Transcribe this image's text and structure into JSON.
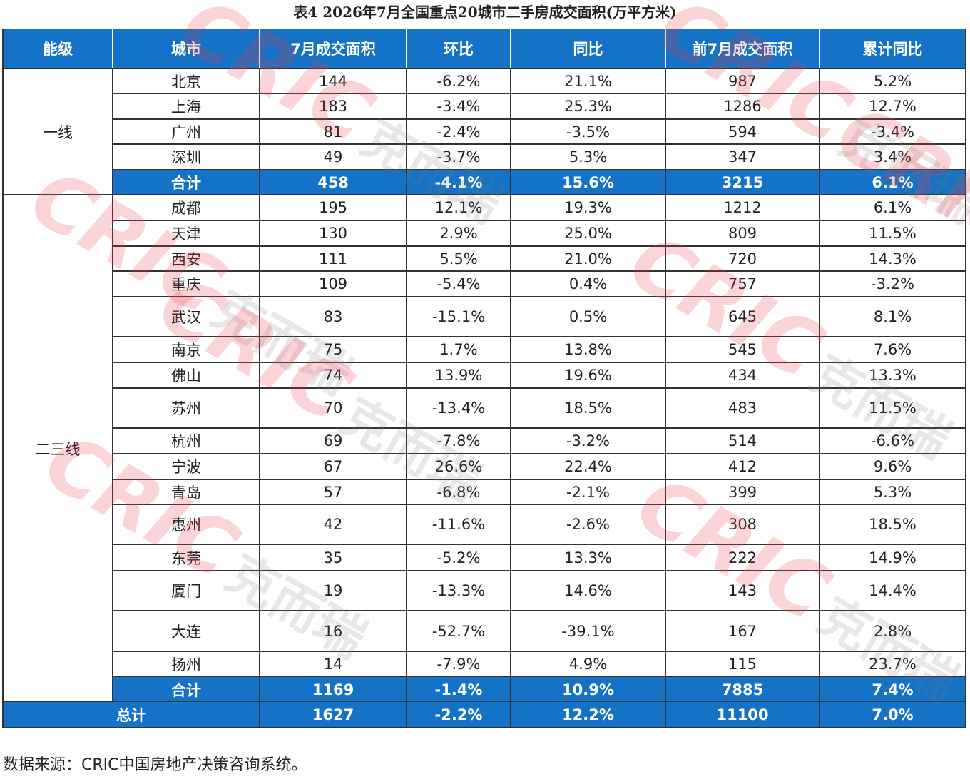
{
  "title": "表4 2026年7月全国重点20城市二手房成交面积(万平方米)",
  "table": {
    "header": [
      "能级",
      "城市",
      "7月成交面积",
      "环比",
      "同比",
      "前7月成交面积",
      "累计同比"
    ],
    "groups": [
      {
        "level": "一线",
        "rows": [
          [
            "北京",
            "144",
            "-6.2%",
            "21.1%",
            "987",
            "5.2%"
          ],
          [
            "上海",
            "183",
            "-3.4%",
            "25.3%",
            "1286",
            "12.7%"
          ],
          [
            "广州",
            "81",
            "-2.4%",
            "-3.5%",
            "594",
            "-3.4%"
          ],
          [
            "深圳",
            "49",
            "-3.7%",
            "5.3%",
            "347",
            "3.4%"
          ]
        ],
        "subtotal": [
          "合计",
          "458",
          "-4.1%",
          "15.6%",
          "3215",
          "6.1%"
        ]
      },
      {
        "level": "二三线",
        "rows": [
          [
            "成都",
            "195",
            "12.1%",
            "19.3%",
            "1212",
            "6.1%"
          ],
          [
            "天津",
            "130",
            "2.9%",
            "25.0%",
            "809",
            "11.5%"
          ],
          [
            "西安",
            "111",
            "5.5%",
            "21.0%",
            "720",
            "14.3%"
          ],
          [
            "重庆",
            "109",
            "-5.4%",
            "0.4%",
            "757",
            "-3.2%"
          ],
          [
            "武汉",
            "83",
            "-15.1%",
            "0.5%",
            "645",
            "8.1%"
          ],
          [
            "南京",
            "75",
            "1.7%",
            "13.8%",
            "545",
            "7.6%"
          ],
          [
            "佛山",
            "74",
            "13.9%",
            "19.6%",
            "434",
            "13.3%"
          ],
          [
            "苏州",
            "70",
            "-13.4%",
            "18.5%",
            "483",
            "11.5%"
          ],
          [
            "杭州",
            "69",
            "-7.8%",
            "-3.2%",
            "514",
            "-6.6%"
          ],
          [
            "宁波",
            "67",
            "26.6%",
            "22.4%",
            "412",
            "9.6%"
          ],
          [
            "青岛",
            "57",
            "-6.8%",
            "-2.1%",
            "399",
            "5.3%"
          ],
          [
            "惠州",
            "42",
            "-11.6%",
            "-2.6%",
            "308",
            "18.5%"
          ],
          [
            "东莞",
            "35",
            "-5.2%",
            "13.3%",
            "222",
            "14.9%"
          ],
          [
            "厦门",
            "19",
            "-13.3%",
            "14.6%",
            "143",
            "14.4%"
          ],
          [
            "大连",
            "16",
            "-52.7%",
            "-39.1%",
            "167",
            "2.8%"
          ],
          [
            "扬州",
            "14",
            "-7.9%",
            "4.9%",
            "115",
            "23.7%"
          ]
        ],
        "subtotal": [
          "合计",
          "1169",
          "-1.4%",
          "10.9%",
          "7885",
          "7.4%"
        ]
      }
    ],
    "total": [
      "总计",
      "1627",
      "-2.2%",
      "12.2%",
      "11100",
      "7.0%"
    ]
  },
  "watermark": {
    "logo": "CRIC",
    "name": "克而瑞"
  },
  "source": "数据来源：CRIC中国房地产决策咨询系统。"
}
